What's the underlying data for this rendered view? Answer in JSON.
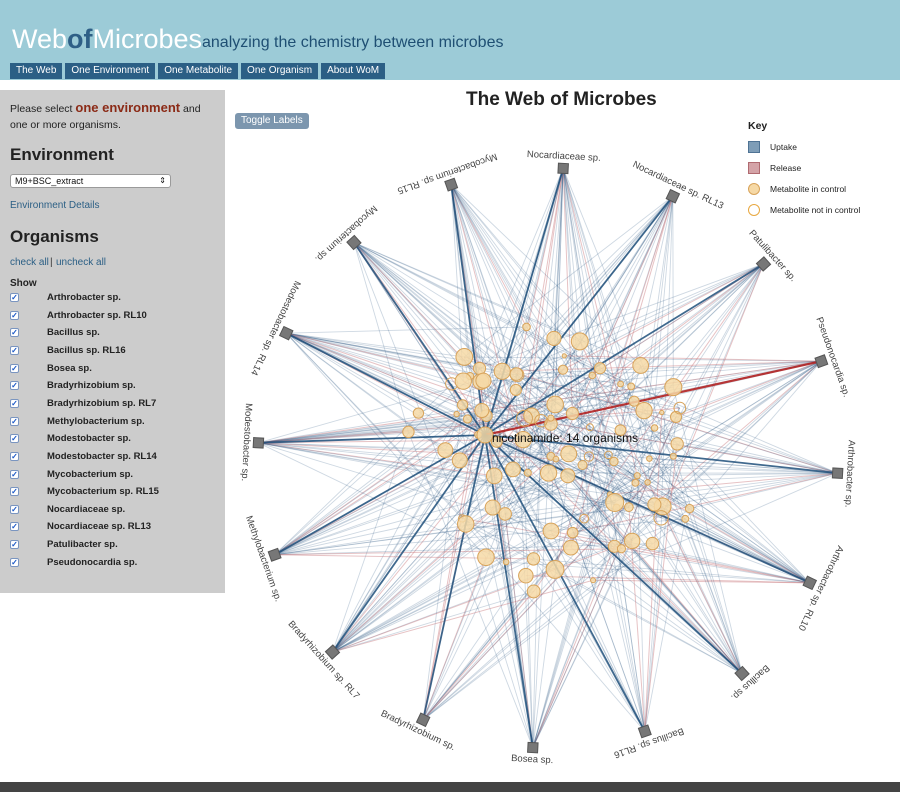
{
  "header": {
    "logo": {
      "part1": "Web",
      "part2": "of",
      "part3": "Microbes"
    },
    "tagline": "analyzing the chemistry between microbes",
    "nav": [
      "The Web",
      "One Environment",
      "One Metabolite",
      "One Organism",
      "About WoM"
    ]
  },
  "sidebar": {
    "instruction": {
      "before": "Please select ",
      "highlight": "one environment",
      "after": " and one or more organisms."
    },
    "environment_heading": "Environment",
    "environment_value": "M9+BSC_extract",
    "environment_details": "Environment Details",
    "organisms_heading": "Organisms",
    "check_all": "check all",
    "separator": "|",
    "uncheck_all": "uncheck all",
    "show_label": "Show",
    "organisms": [
      "Arthrobacter sp.",
      "Arthrobacter sp. RL10",
      "Bacillus sp.",
      "Bacillus sp. RL16",
      "Bosea sp.",
      "Bradyrhizobium sp.",
      "Bradyrhizobium sp. RL7",
      "Methylobacterium sp.",
      "Modestobacter sp.",
      "Modestobacter sp. RL14",
      "Mycobacterium sp.",
      "Mycobacterium sp. RL15",
      "Nocardiaceae sp.",
      "Nocardiaceae sp. RL13",
      "Patulibacter sp.",
      "Pseudonocardia sp."
    ]
  },
  "main": {
    "title": "The Web of Microbes",
    "toggle_labels": "Toggle Labels",
    "hover_label": "nicotinamide: 14 organisms"
  },
  "key": {
    "title": "Key",
    "items": [
      {
        "label": "Uptake",
        "color": "#7e9db7"
      },
      {
        "label": "Release",
        "color": "#d4a3a7"
      },
      {
        "label": "Metabolite in control",
        "color": "#f6d9a6"
      },
      {
        "label": "Metabolite not in control",
        "color": "#ffffff"
      }
    ]
  },
  "web": {
    "nodes": [
      "Nocardiaceae sp.",
      "Nocardiaceae sp. RL13",
      "Patulibacter sp.",
      "Pseudonocardia sp.",
      "Arthrobacter sp.",
      "Arthrobacter sp. RL10",
      "Bacillus sp.",
      "Bacillus sp. RL16",
      "Bosea sp.",
      "Bradyrhizobium sp.",
      "Bradyrhizobium sp. RL7",
      "Methylobacterium sp.",
      "Modestobacter sp.",
      "Modestobacter sp. RL14",
      "Mycobacterium sp.",
      "Mycobacterium sp. RL15"
    ],
    "colors": {
      "uptake": "#1f4f7a",
      "release": "#c97a7f",
      "highlight": "#b22222",
      "node": "#777777",
      "metabolite_fill": "#f6d9a6",
      "metabolite_stroke": "#d8a35a"
    }
  }
}
